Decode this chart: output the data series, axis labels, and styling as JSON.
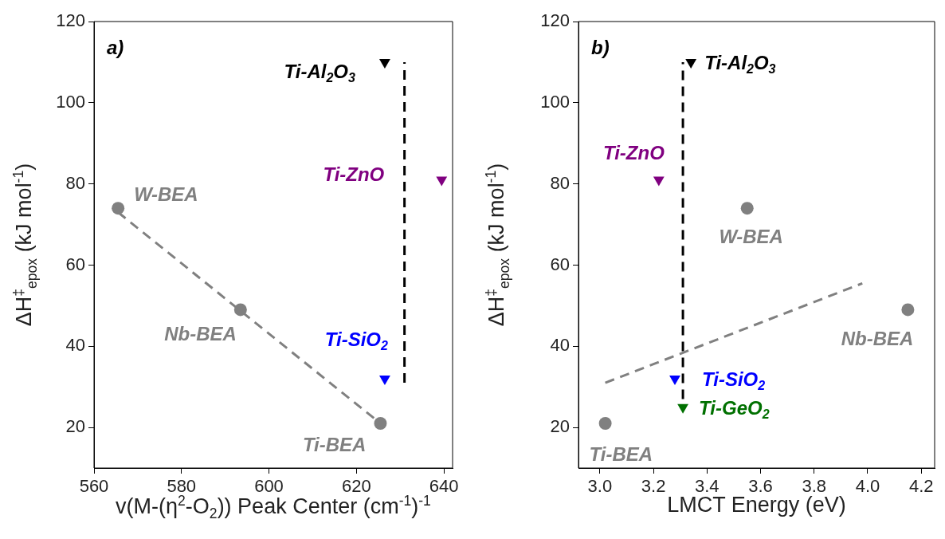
{
  "chart_data": [
    {
      "type": "scatter",
      "xlabel": "v(M-(η$^{2}$-O$_{2}$)) Peak Center (cm$^{-1}$)$^{-1}$",
      "ylabel": "ΔH$^{‡}$$_{epox}$ (kJ mol$^{-1}$)",
      "annotations": [
        "a)"
      ],
      "xlim": [
        560,
        642
      ],
      "xticks": [
        560,
        580,
        600,
        620,
        640
      ],
      "ylim": [
        10,
        120
      ],
      "yticks": [
        20,
        40,
        60,
        80,
        100,
        120
      ],
      "series": [
        {
          "name": "W-BEA",
          "color": "#808080",
          "marker": "circle",
          "x": [
            565.5
          ],
          "values": [
            74
          ]
        },
        {
          "name": "Nb-BEA",
          "color": "#808080",
          "marker": "circle",
          "x": [
            593.5
          ],
          "values": [
            49
          ]
        },
        {
          "name": "Ti-BEA",
          "color": "#808080",
          "marker": "circle",
          "x": [
            625.5
          ],
          "values": [
            21
          ]
        },
        {
          "name": "Ti-Al$_{2}$O$_{3}$",
          "color": "#000000",
          "marker": "triangle-down",
          "x": [
            626.5
          ],
          "values": [
            110
          ]
        },
        {
          "name": "Ti-ZnO",
          "color": "#800080",
          "marker": "triangle-down",
          "x": [
            639.5
          ],
          "values": [
            81
          ]
        },
        {
          "name": "Ti-SiO$_{2}$",
          "color": "#0000ff",
          "marker": "triangle-down",
          "x": [
            626.5
          ],
          "values": [
            32
          ]
        },
        {
          "type": "line",
          "color": "#808080",
          "line_style": "dashed",
          "marker": "none",
          "x": [
            565.5,
            625.5
          ],
          "values": [
            73,
            21
          ]
        },
        {
          "type": "line",
          "color": "#000000",
          "line_style": "dashed",
          "marker": "none",
          "x": [
            631,
            631
          ],
          "values": [
            31,
            110
          ]
        }
      ]
    },
    {
      "type": "scatter",
      "xlabel": "LMCT Energy (eV)",
      "ylabel": "ΔH$^{‡}$$_{epox}$ (kJ mol$^{-1}$)",
      "annotations": [
        "b)"
      ],
      "xlim": [
        2.92,
        4.25
      ],
      "xticks": [
        {
          "value": 3.0,
          "label": "3.0"
        },
        {
          "value": 3.2,
          "label": "3.2"
        },
        {
          "value": 3.4,
          "label": "3.4"
        },
        {
          "value": 3.6,
          "label": "3.6"
        },
        {
          "value": 3.8,
          "label": "3.8"
        },
        {
          "value": 4.0,
          "label": "4.0"
        },
        {
          "value": 4.2,
          "label": "4.2"
        }
      ],
      "ylim": [
        10,
        120
      ],
      "yticks": [
        20,
        40,
        60,
        80,
        100,
        120
      ],
      "series": [
        {
          "name": "Ti-BEA",
          "color": "#808080",
          "marker": "circle",
          "x": [
            3.02
          ],
          "values": [
            21
          ]
        },
        {
          "name": "W-BEA",
          "color": "#808080",
          "marker": "circle",
          "x": [
            3.55
          ],
          "values": [
            74
          ]
        },
        {
          "name": "Nb-BEA",
          "color": "#808080",
          "marker": "circle",
          "x": [
            4.15
          ],
          "values": [
            49
          ]
        },
        {
          "name": "Ti-Al$_{2}$O$_{3}$",
          "color": "#000000",
          "marker": "triangle-down",
          "x": [
            3.34
          ],
          "values": [
            110
          ]
        },
        {
          "name": "Ti-ZnO",
          "color": "#800080",
          "marker": "triangle-down",
          "x": [
            3.22
          ],
          "values": [
            81
          ]
        },
        {
          "name": "Ti-SiO$_{2}$",
          "color": "#0000ff",
          "marker": "triangle-down",
          "x": [
            3.28
          ],
          "values": [
            32
          ]
        },
        {
          "name": "Ti-GeO$_{2}$",
          "color": "#007000",
          "marker": "triangle-down",
          "x": [
            3.31
          ],
          "values": [
            25
          ]
        },
        {
          "type": "line",
          "color": "#808080",
          "line_style": "dashed",
          "marker": "none",
          "x": [
            3.02,
            3.98
          ],
          "values": [
            31,
            55.5
          ]
        },
        {
          "type": "line",
          "color": "#000000",
          "line_style": "dashed",
          "marker": "none",
          "x": [
            3.31,
            3.31
          ],
          "values": [
            27,
            110
          ]
        }
      ]
    }
  ]
}
